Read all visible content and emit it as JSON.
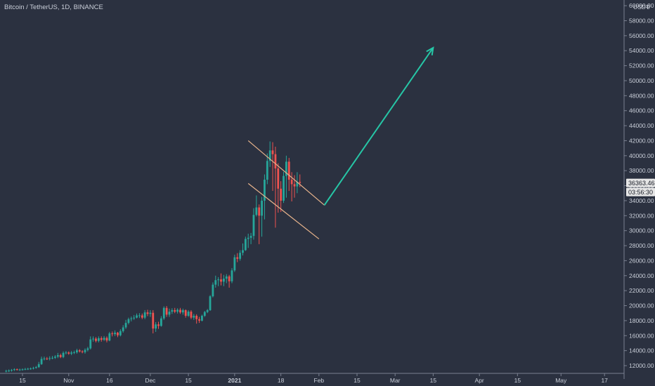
{
  "header": {
    "title": "Bitcoin / TetherUS, 1D, BINANCE"
  },
  "price_axis": {
    "currency": "USDT",
    "top_marker": "0"
  },
  "last_price": {
    "value": "36363.46",
    "countdown": "03:56:30"
  },
  "colors": {
    "background": "#2b3140",
    "text": "#c9ced8",
    "up": "#26a69a",
    "down": "#ef5350",
    "channel": "#e8b48c",
    "projection_arrow": "#26c6a6",
    "price_label_bg": "#e6e6e6"
  },
  "chart_data": {
    "type": "candlestick",
    "title": "Bitcoin / TetherUS, 1D, BINANCE",
    "x_axis": {
      "ticks": [
        "15",
        "Nov",
        "16",
        "Dec",
        "15",
        "2021",
        "18",
        "Feb",
        "15",
        "Mar",
        "15",
        "Apr",
        "15",
        "May",
        "17"
      ],
      "tick_dates": [
        "2020-10-15",
        "2020-11-01",
        "2020-11-16",
        "2020-12-01",
        "2020-12-15",
        "2021-01-01",
        "2021-01-18",
        "2021-02-01",
        "2021-02-15",
        "2021-03-01",
        "2021-03-15",
        "2021-04-01",
        "2021-04-15",
        "2021-05-01",
        "2021-05-17"
      ],
      "bold_ticks": [
        "2021"
      ]
    },
    "y_axis": {
      "ticks": [
        12000,
        14000,
        16000,
        18000,
        20000,
        22000,
        24000,
        26000,
        28000,
        30000,
        32000,
        34000,
        36000,
        38000,
        40000,
        42000,
        44000,
        46000,
        48000,
        50000,
        52000,
        54000,
        56000,
        58000,
        60000
      ],
      "range": [
        10500,
        60500
      ]
    },
    "grid": false,
    "series": [
      {
        "type": "candlestick",
        "start_date": "2020-10-09",
        "close": [
          11300,
          11350,
          11420,
          11520,
          11480,
          11480,
          11500,
          11550,
          11580,
          11620,
          11690,
          11800,
          12200,
          12900,
          12950,
          12930,
          13000,
          13050,
          13200,
          13400,
          13150,
          13700,
          13750,
          13600,
          13750,
          13780,
          14050,
          13900,
          13800,
          14100,
          14300,
          15500,
          15600,
          15300,
          15650,
          15450,
          15700,
          15350,
          16300,
          16200,
          16400,
          16050,
          16600,
          17100,
          17700,
          18200,
          18300,
          18400,
          18700,
          18700,
          18400,
          19100,
          18900,
          19050,
          16950,
          17500,
          17300,
          18300,
          19700,
          18800,
          19200,
          19400,
          19200,
          19450,
          19100,
          19400,
          18650,
          19200,
          18400,
          18650,
          18200,
          18000,
          18650,
          19150,
          19400,
          21250,
          22800,
          23400,
          23500,
          23200,
          23600,
          23900,
          23250,
          24700,
          26450,
          26250,
          27050,
          27400,
          28900,
          29050,
          29300,
          32100,
          33100,
          32000,
          34000,
          36800,
          39300,
          40700,
          40200,
          38300,
          35600,
          34000,
          37300,
          39200,
          36800,
          36200,
          35900,
          36500,
          36363
        ],
        "open": [
          11250,
          11300,
          11350,
          11420,
          11520,
          11480,
          11480,
          11500,
          11550,
          11580,
          11620,
          11690,
          11800,
          12200,
          12900,
          12950,
          12930,
          13000,
          13050,
          13200,
          13400,
          13150,
          13700,
          13750,
          13600,
          13750,
          13780,
          14050,
          13900,
          13800,
          14100,
          14300,
          15500,
          15600,
          15300,
          15650,
          15450,
          15700,
          15350,
          16300,
          16200,
          16400,
          16050,
          16600,
          17100,
          17700,
          18200,
          18300,
          18400,
          18700,
          18700,
          18400,
          19100,
          18900,
          19050,
          16950,
          17500,
          17300,
          18300,
          19700,
          18800,
          19200,
          19400,
          19200,
          19450,
          19100,
          19400,
          18650,
          19200,
          18400,
          18650,
          18200,
          18000,
          18650,
          19150,
          19400,
          21250,
          22800,
          23400,
          23500,
          23200,
          23600,
          23900,
          23250,
          24700,
          26450,
          26250,
          27050,
          27400,
          28900,
          29050,
          29300,
          32100,
          33100,
          32000,
          34000,
          36800,
          39300,
          40700,
          40200,
          38300,
          35600,
          34000,
          37300,
          39200,
          36800,
          36200,
          35900,
          36500
        ],
        "high": [
          11450,
          11500,
          11550,
          11650,
          11620,
          11600,
          11620,
          11700,
          11720,
          11750,
          11850,
          11950,
          12500,
          13200,
          13200,
          13150,
          13250,
          13300,
          13400,
          13700,
          13600,
          13900,
          13950,
          13900,
          13950,
          14000,
          14250,
          14200,
          14050,
          14300,
          14500,
          15900,
          15900,
          15800,
          15900,
          15900,
          15950,
          15900,
          16500,
          16550,
          16700,
          16500,
          16850,
          17400,
          18100,
          18400,
          18550,
          18750,
          18950,
          19000,
          18950,
          19400,
          19450,
          19400,
          19400,
          17800,
          17850,
          18600,
          19900,
          19950,
          19600,
          19650,
          19700,
          19650,
          19700,
          19600,
          19500,
          19400,
          19400,
          18900,
          18850,
          18500,
          18800,
          19300,
          19550,
          21400,
          23100,
          24000,
          23800,
          24300,
          24100,
          24200,
          24100,
          25000,
          26800,
          27000,
          27400,
          28300,
          29200,
          29600,
          29700,
          33000,
          34700,
          33500,
          34500,
          37500,
          40300,
          41900,
          41800,
          41200,
          39000,
          36600,
          37850,
          40000,
          39700,
          37800,
          37400,
          37800,
          37500
        ],
        "low": [
          11100,
          11150,
          11200,
          11300,
          11350,
          11300,
          11350,
          11400,
          11420,
          11450,
          11500,
          11600,
          11700,
          12100,
          12700,
          12750,
          12700,
          12850,
          12900,
          13000,
          13000,
          13000,
          13500,
          13450,
          13400,
          13550,
          13600,
          13750,
          13650,
          13600,
          13900,
          14150,
          15200,
          15100,
          15100,
          15200,
          15300,
          15100,
          15250,
          15900,
          15950,
          15800,
          15900,
          16400,
          16900,
          17500,
          17900,
          18100,
          18300,
          18350,
          18200,
          18200,
          18600,
          18500,
          16300,
          16500,
          16900,
          17200,
          18100,
          18500,
          18500,
          18900,
          19000,
          18950,
          18900,
          18800,
          18400,
          18500,
          18200,
          18100,
          17600,
          17700,
          17900,
          18500,
          19000,
          19300,
          21100,
          22400,
          22600,
          22700,
          22600,
          23000,
          22400,
          23000,
          24500,
          25800,
          26000,
          26700,
          27300,
          27700,
          28200,
          28800,
          31900,
          28200,
          29200,
          31500,
          36200,
          38500,
          35300,
          30400,
          32400,
          32500,
          33700,
          34400,
          35300,
          33900,
          34400,
          35000,
          35800
        ]
      }
    ],
    "annotations": [
      {
        "type": "trend_line",
        "label": "channel-upper",
        "from": {
          "date": "2021-01-06",
          "price": 42000
        },
        "to": {
          "date": "2021-02-03",
          "price": 33400
        }
      },
      {
        "type": "trend_line",
        "label": "channel-lower",
        "from": {
          "date": "2021-01-06",
          "price": 36300
        },
        "to": {
          "date": "2021-02-01",
          "price": 28900
        }
      },
      {
        "type": "arrow",
        "label": "projection",
        "from": {
          "date": "2021-02-03",
          "price": 33400
        },
        "to": {
          "date": "2021-03-15",
          "price": 54400
        }
      }
    ]
  }
}
